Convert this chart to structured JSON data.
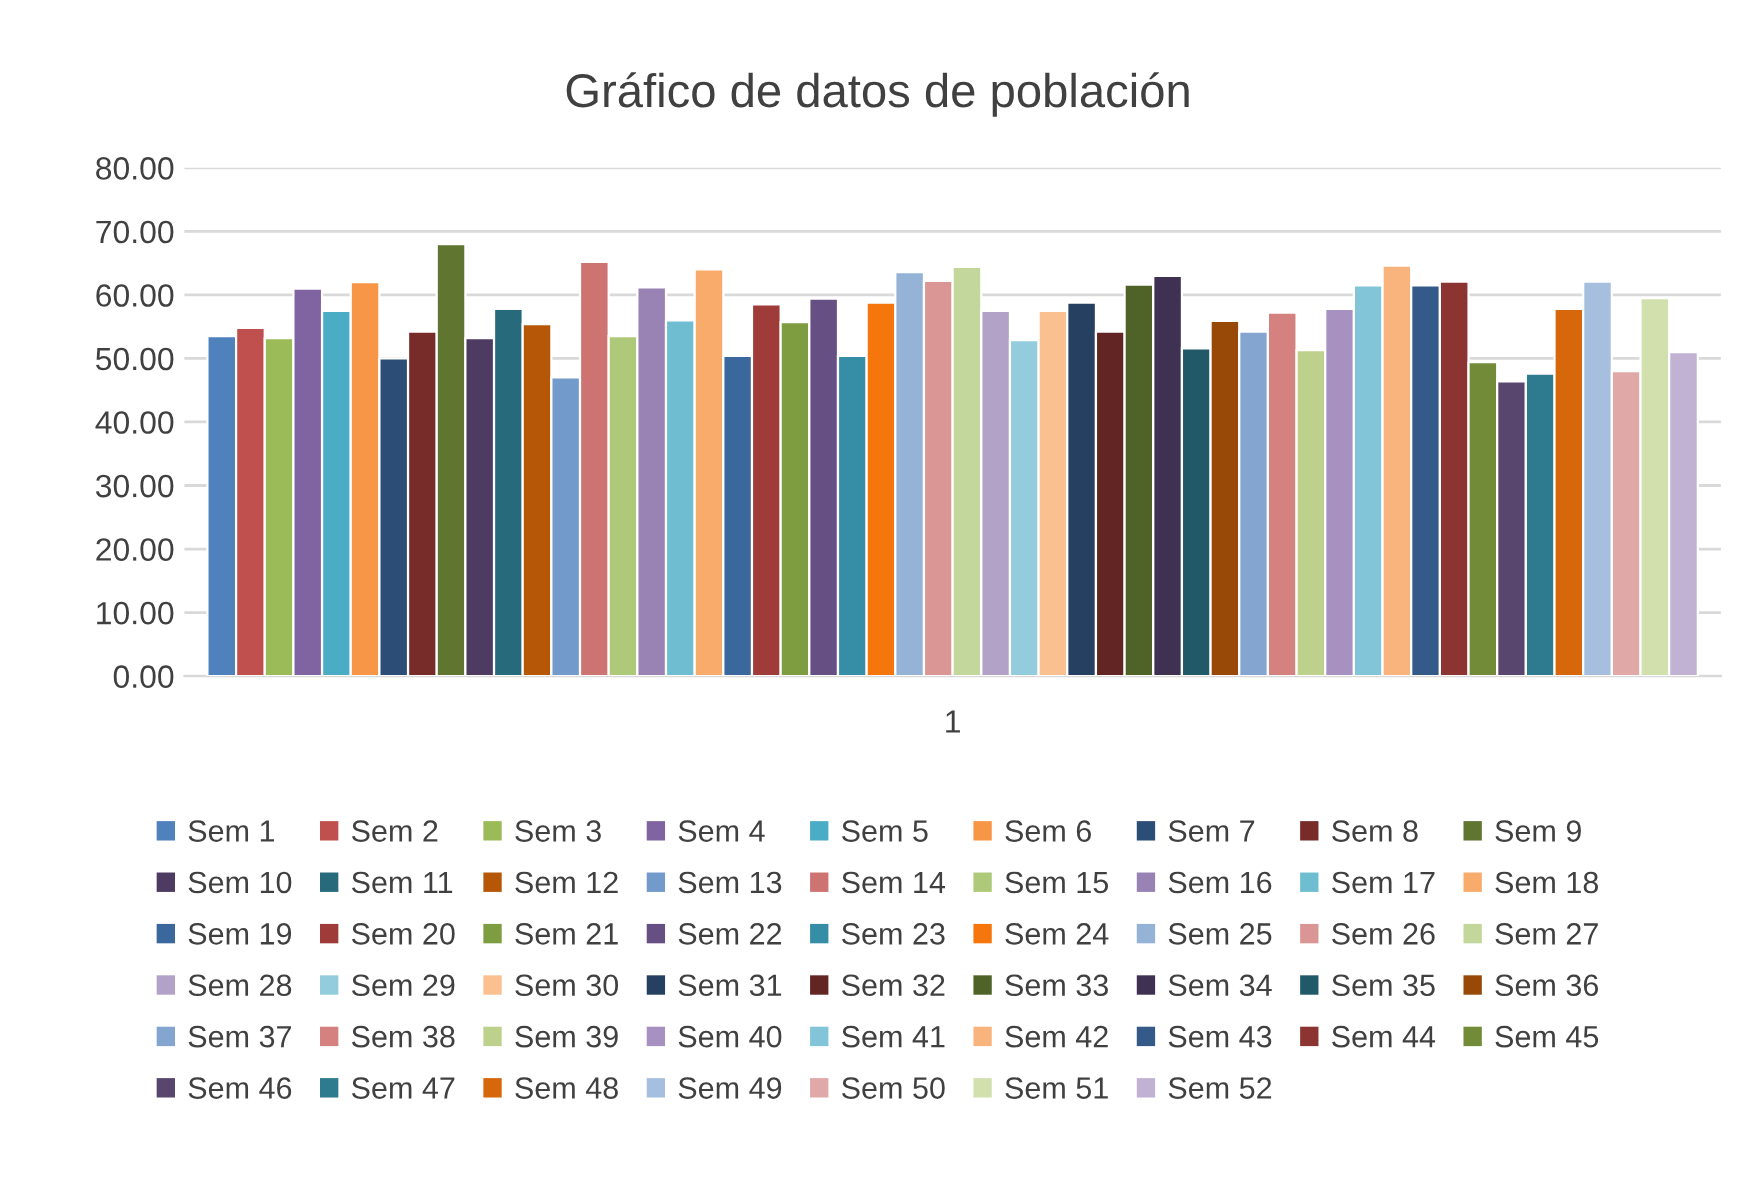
{
  "chart_data": {
    "type": "bar",
    "title": "Gráfico de datos de población",
    "categories": [
      "1"
    ],
    "ylim": [
      0,
      80
    ],
    "yticks": [
      {
        "value": 0,
        "label": "0.00"
      },
      {
        "value": 10,
        "label": "10.00"
      },
      {
        "value": 20,
        "label": "20.00"
      },
      {
        "value": 30,
        "label": "30.00"
      },
      {
        "value": 40,
        "label": "40.00"
      },
      {
        "value": 50,
        "label": "50.00"
      },
      {
        "value": 60,
        "label": "60.00"
      },
      {
        "value": 70,
        "label": "70.00"
      },
      {
        "value": 80,
        "label": "80.00"
      }
    ],
    "grid": "y",
    "legend": "bottom",
    "series": [
      {
        "name": "Sem 1",
        "color": "#4f81bd",
        "values": [
          53.5
        ]
      },
      {
        "name": "Sem 2",
        "color": "#c0504d",
        "values": [
          54.8
        ]
      },
      {
        "name": "Sem 3",
        "color": "#9bbb59",
        "values": [
          53.2
        ]
      },
      {
        "name": "Sem 4",
        "color": "#8064a2",
        "values": [
          61
        ]
      },
      {
        "name": "Sem 5",
        "color": "#4bacc6",
        "values": [
          57.5
        ]
      },
      {
        "name": "Sem 6",
        "color": "#f79646",
        "values": [
          62
        ]
      },
      {
        "name": "Sem 7",
        "color": "#2c4d75",
        "values": [
          50
        ]
      },
      {
        "name": "Sem 8",
        "color": "#772c2a",
        "values": [
          54.2
        ]
      },
      {
        "name": "Sem 9",
        "color": "#5f7530",
        "values": [
          68
        ]
      },
      {
        "name": "Sem 10",
        "color": "#4d3b62",
        "values": [
          53.2
        ]
      },
      {
        "name": "Sem 11",
        "color": "#276a7c",
        "values": [
          57.8
        ]
      },
      {
        "name": "Sem 12",
        "color": "#b65708",
        "values": [
          55.4
        ]
      },
      {
        "name": "Sem 13",
        "color": "#729aca",
        "values": [
          47
        ]
      },
      {
        "name": "Sem 14",
        "color": "#cd7371",
        "values": [
          65.2
        ]
      },
      {
        "name": "Sem 15",
        "color": "#afc97a",
        "values": [
          53.5
        ]
      },
      {
        "name": "Sem 16",
        "color": "#9983b5",
        "values": [
          61.2
        ]
      },
      {
        "name": "Sem 17",
        "color": "#6fbdd1",
        "values": [
          56
        ]
      },
      {
        "name": "Sem 18",
        "color": "#f9ab6b",
        "values": [
          64
        ]
      },
      {
        "name": "Sem 19",
        "color": "#3a679c",
        "values": [
          50.4
        ]
      },
      {
        "name": "Sem 20",
        "color": "#9f3b38",
        "values": [
          58.5
        ]
      },
      {
        "name": "Sem 21",
        "color": "#7e9c40",
        "values": [
          55.7
        ]
      },
      {
        "name": "Sem 22",
        "color": "#664f83",
        "values": [
          59.4
        ]
      },
      {
        "name": "Sem 23",
        "color": "#358ea6",
        "values": [
          50.4
        ]
      },
      {
        "name": "Sem 24",
        "color": "#f4760c",
        "values": [
          58.8
        ]
      },
      {
        "name": "Sem 25",
        "color": "#95b3d7",
        "values": [
          63.6
        ]
      },
      {
        "name": "Sem 26",
        "color": "#d99694",
        "values": [
          62.2
        ]
      },
      {
        "name": "Sem 27",
        "color": "#c3d69b",
        "values": [
          64.4
        ]
      },
      {
        "name": "Sem 28",
        "color": "#b2a2c7",
        "values": [
          57.5
        ]
      },
      {
        "name": "Sem 29",
        "color": "#93cddd",
        "values": [
          52.9
        ]
      },
      {
        "name": "Sem 30",
        "color": "#fac090",
        "values": [
          57.5
        ]
      },
      {
        "name": "Sem 31",
        "color": "#254061",
        "values": [
          58.8
        ]
      },
      {
        "name": "Sem 32",
        "color": "#632523",
        "values": [
          54.2
        ]
      },
      {
        "name": "Sem 33",
        "color": "#4f6228",
        "values": [
          61.6
        ]
      },
      {
        "name": "Sem 34",
        "color": "#3f3151",
        "values": [
          63
        ]
      },
      {
        "name": "Sem 35",
        "color": "#215968",
        "values": [
          51.6
        ]
      },
      {
        "name": "Sem 36",
        "color": "#984807",
        "values": [
          55.9
        ]
      },
      {
        "name": "Sem 37",
        "color": "#84a5d0",
        "values": [
          54.2
        ]
      },
      {
        "name": "Sem 38",
        "color": "#d48180",
        "values": [
          57.2
        ]
      },
      {
        "name": "Sem 39",
        "color": "#bdd08c",
        "values": [
          51.3
        ]
      },
      {
        "name": "Sem 40",
        "color": "#a691c0",
        "values": [
          57.8
        ]
      },
      {
        "name": "Sem 41",
        "color": "#82c5d8",
        "values": [
          61.5
        ]
      },
      {
        "name": "Sem 42",
        "color": "#f9b47e",
        "values": [
          64.6
        ]
      },
      {
        "name": "Sem 43",
        "color": "#345a8a",
        "values": [
          61.5
        ]
      },
      {
        "name": "Sem 44",
        "color": "#8b3431",
        "values": [
          62.1
        ]
      },
      {
        "name": "Sem 45",
        "color": "#718b38",
        "values": [
          49.4
        ]
      },
      {
        "name": "Sem 46",
        "color": "#59466f",
        "values": [
          46.4
        ]
      },
      {
        "name": "Sem 47",
        "color": "#2e7b90",
        "values": [
          47.6
        ]
      },
      {
        "name": "Sem 48",
        "color": "#d6670b",
        "values": [
          57.8
        ]
      },
      {
        "name": "Sem 49",
        "color": "#a7bfde",
        "values": [
          62.1
        ]
      },
      {
        "name": "Sem 50",
        "color": "#e0a8a7",
        "values": [
          48
        ]
      },
      {
        "name": "Sem 51",
        "color": "#d1e0ad",
        "values": [
          59.5
        ]
      },
      {
        "name": "Sem 52",
        "color": "#c1b2d4",
        "values": [
          51
        ]
      }
    ]
  }
}
